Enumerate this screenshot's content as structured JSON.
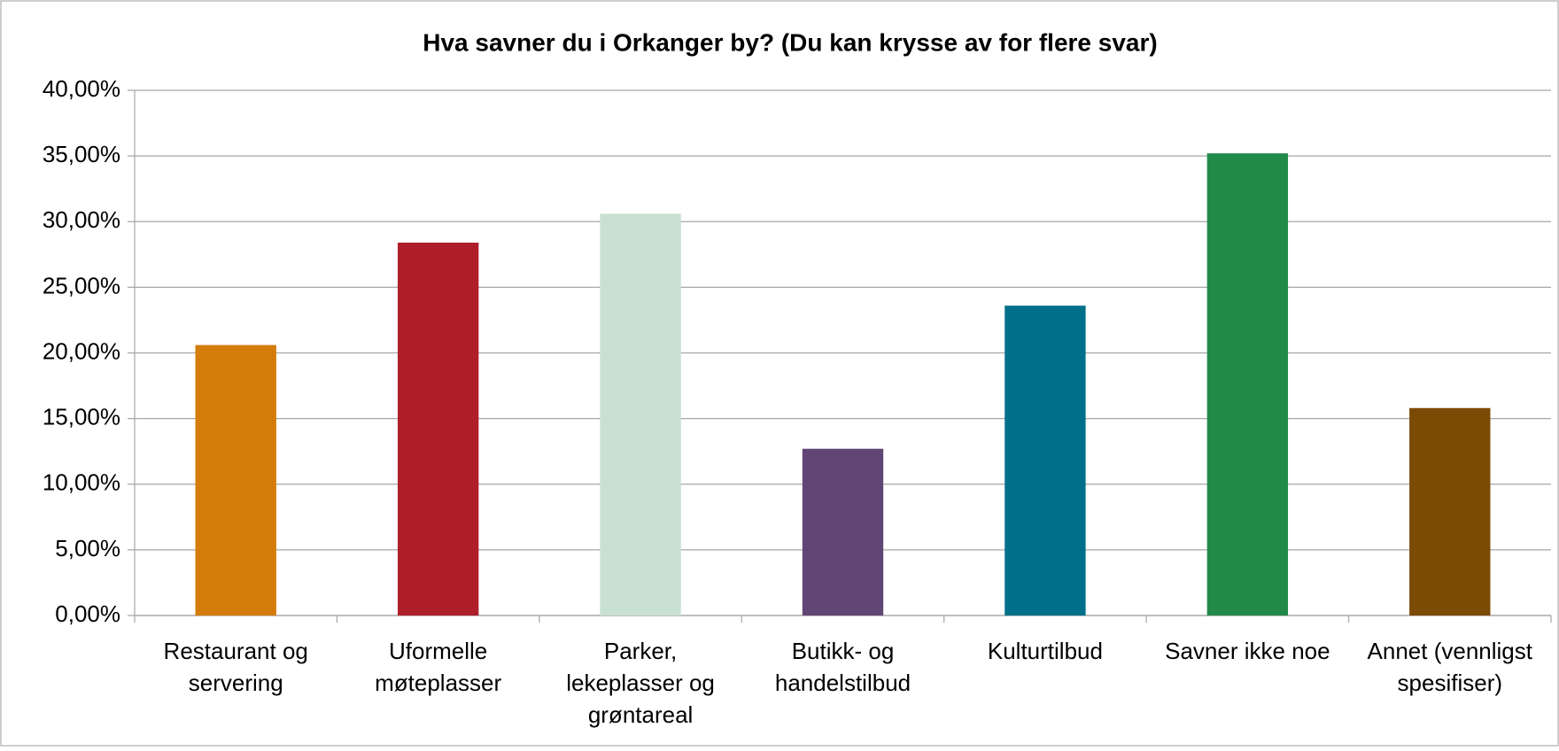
{
  "chart_data": {
    "type": "bar",
    "title": "Hva savner du i Orkanger by? (Du kan krysse av for flere svar)",
    "categories": [
      "Restaurant og servering",
      "Uformelle møteplasser",
      "Parker, lekeplasser og grøntareal",
      "Butikk- og handelstilbud",
      "Kulturtilbud",
      "Savner ikke noe",
      "Annet (vennligst spesifiser)"
    ],
    "values": [
      20.6,
      28.4,
      30.6,
      12.7,
      23.6,
      35.2,
      15.8
    ],
    "colors": [
      "#d47c0a",
      "#ae1f2a",
      "#c9e1d1",
      "#614675",
      "#00708a",
      "#218a48",
      "#7b4a05"
    ],
    "ylim": [
      0,
      40
    ],
    "yticks": [
      {
        "value": 0,
        "label": "0,00%"
      },
      {
        "value": 5,
        "label": "5,00%"
      },
      {
        "value": 10,
        "label": "10,00%"
      },
      {
        "value": 15,
        "label": "15,00%"
      },
      {
        "value": 20,
        "label": "20,00%"
      },
      {
        "value": 25,
        "label": "25,00%"
      },
      {
        "value": 30,
        "label": "30,00%"
      },
      {
        "value": 35,
        "label": "35,00%"
      },
      {
        "value": 40,
        "label": "40,00%"
      }
    ],
    "grid": true
  }
}
